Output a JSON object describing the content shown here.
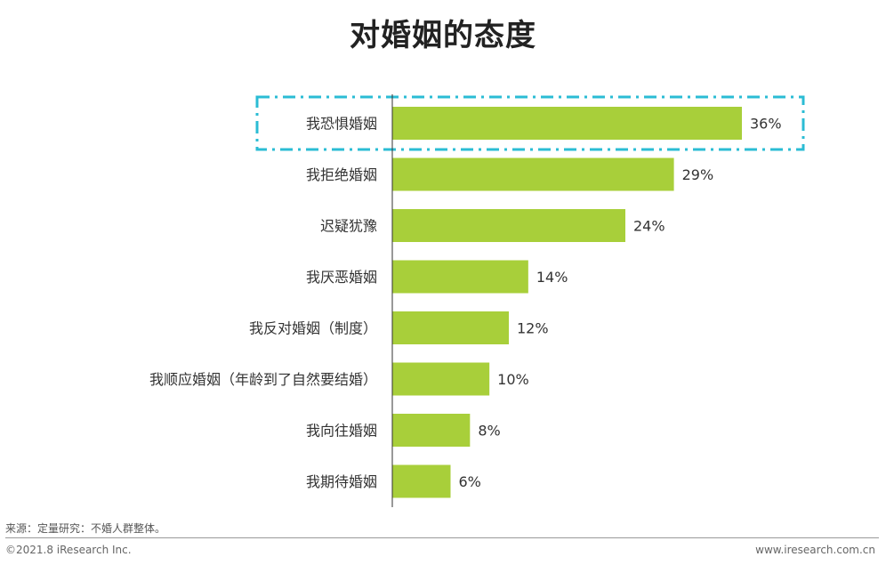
{
  "colors": {
    "bar": "#a8cf3a",
    "highlight_box": "#2bbcd4",
    "axis": "#333333"
  },
  "chart_data": {
    "type": "bar",
    "orientation": "horizontal",
    "title": "对婚姻的态度",
    "categories": [
      "我恐惧婚姻",
      "我拒绝婚姻",
      "迟疑犹豫",
      "我厌恶婚姻",
      "我反对婚姻（制度）",
      "我顺应婚姻（年龄到了自然要结婚）",
      "我向往婚姻",
      "我期待婚姻"
    ],
    "values": [
      36,
      29,
      24,
      14,
      12,
      10,
      8,
      6
    ],
    "value_labels": [
      "36%",
      "29%",
      "24%",
      "14%",
      "12%",
      "10%",
      "8%",
      "6%"
    ],
    "unit": "%",
    "xlim": [
      0,
      40
    ],
    "highlighted_category": "我恐惧婚姻",
    "grid": false
  },
  "footer": {
    "source": "来源：定量研究：不婚人群整体。",
    "copyright": "©2021.8 iResearch Inc.",
    "website": "www.iresearch.com.cn"
  }
}
